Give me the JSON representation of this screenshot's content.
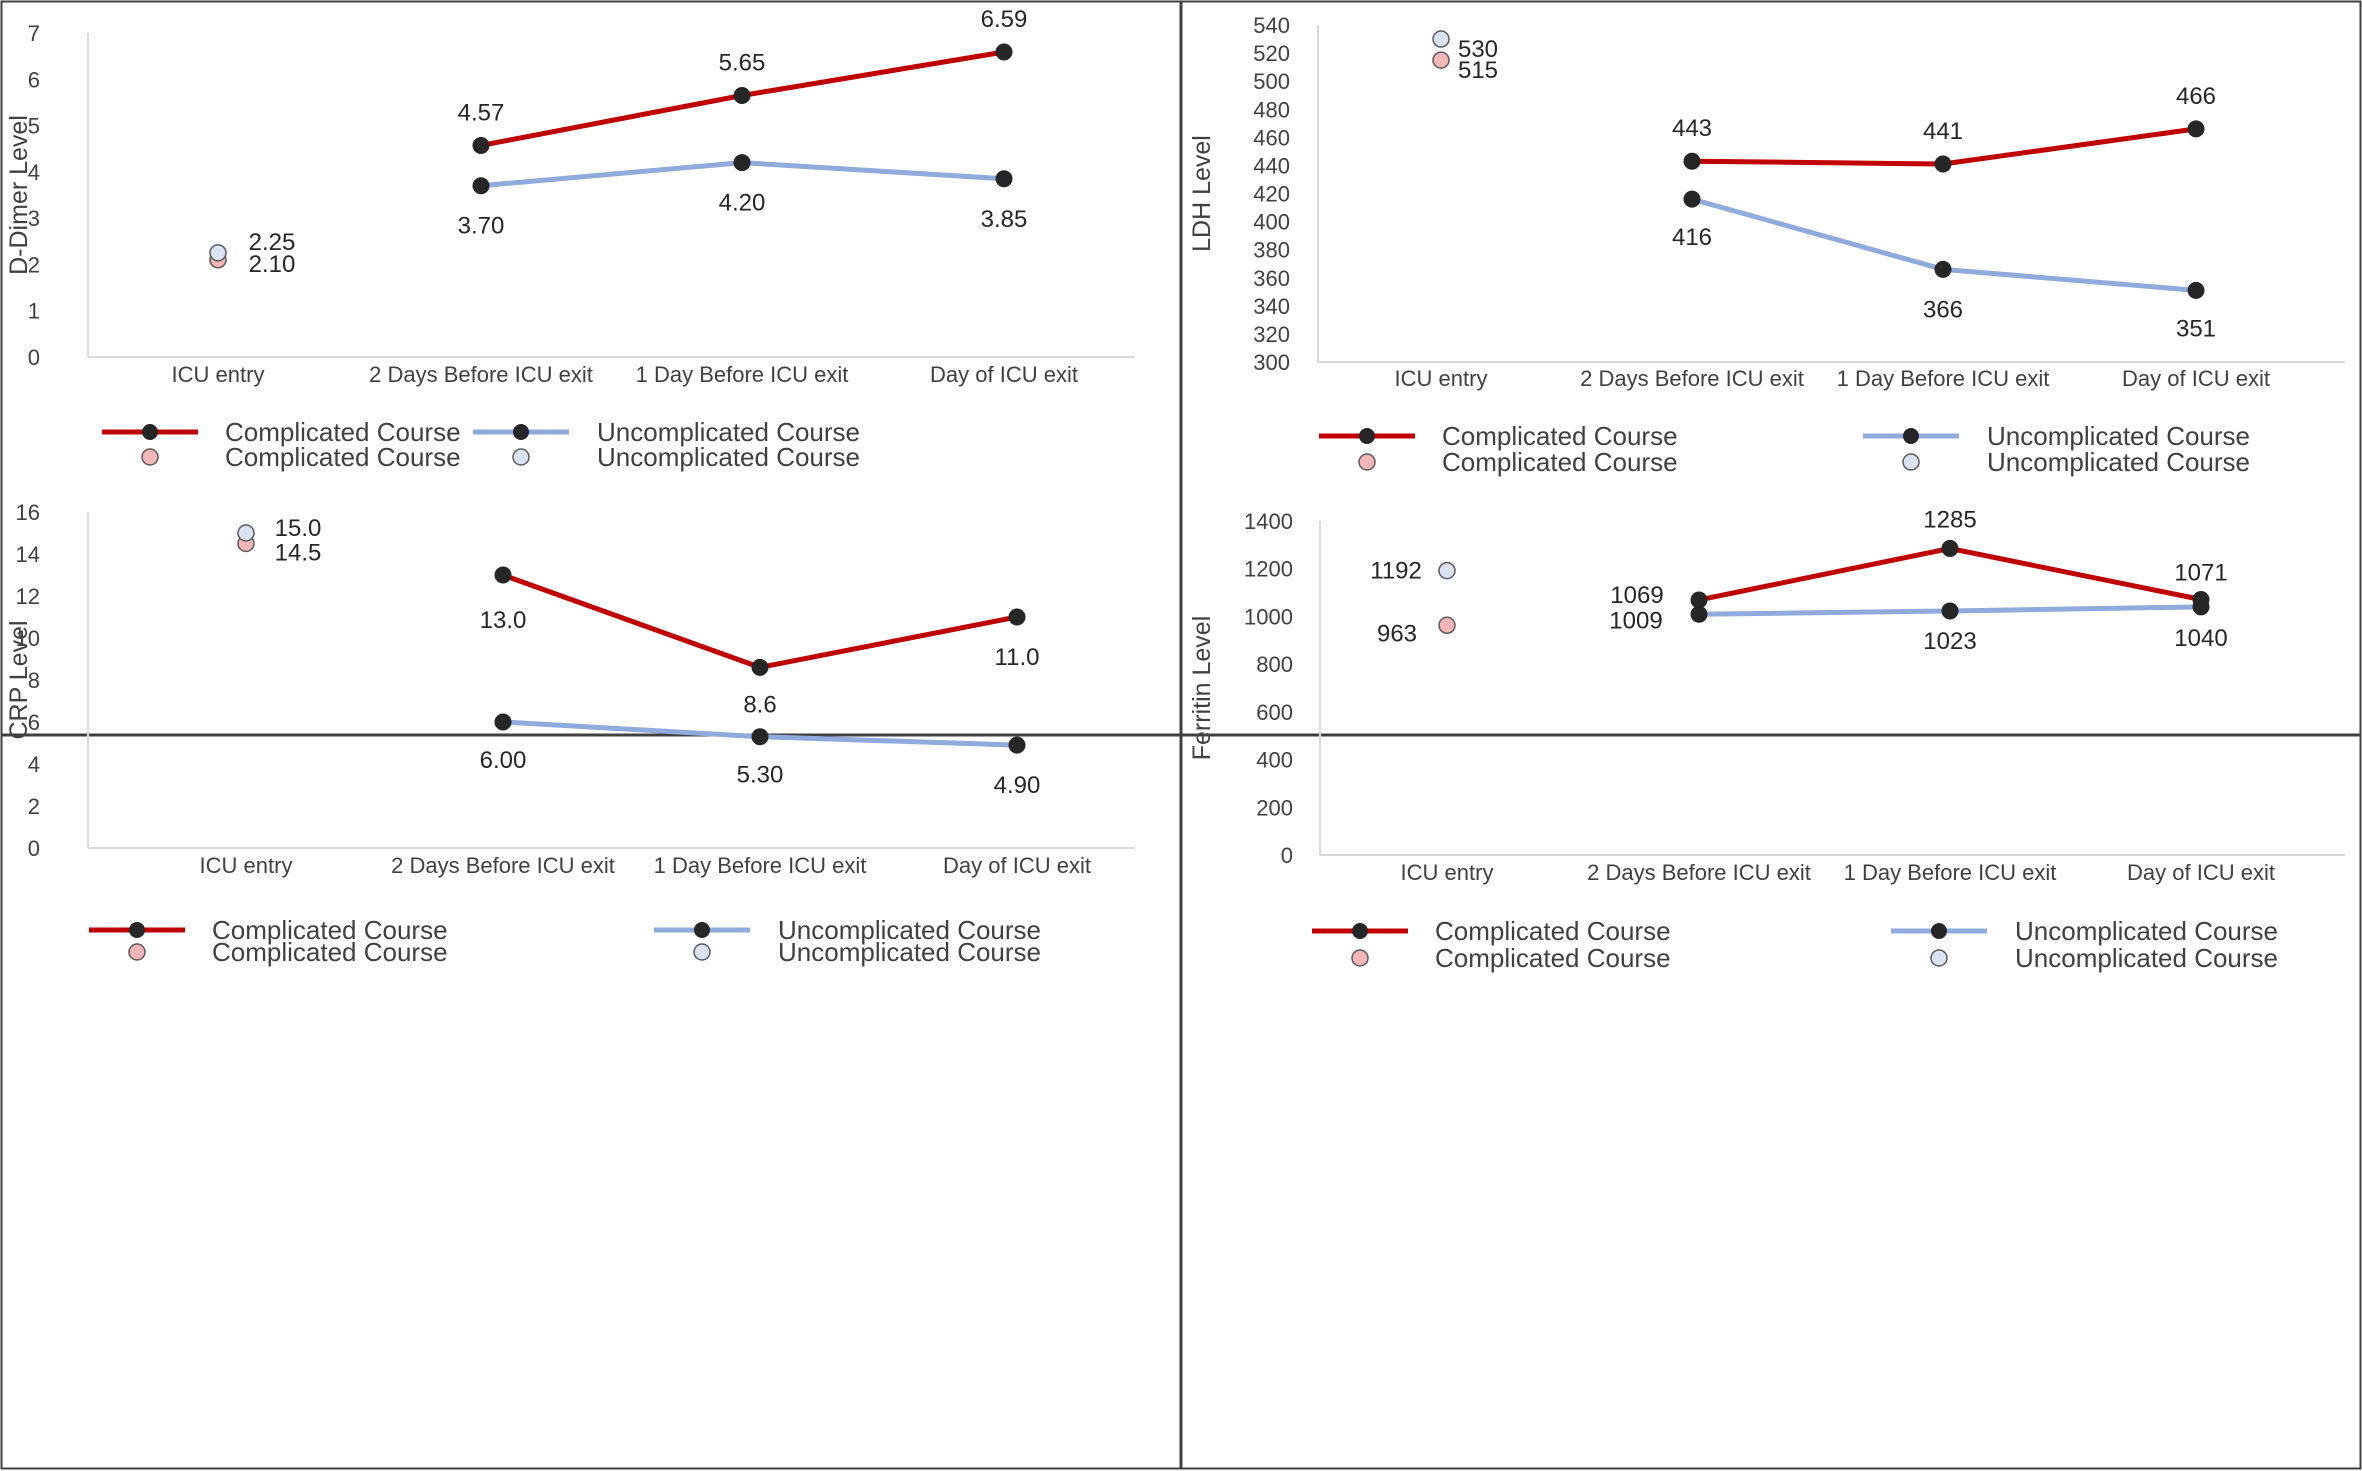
{
  "chart_data": [
    {
      "type": "line",
      "ylabel": "D-Dimer Level",
      "ylim": [
        0,
        7
      ],
      "yticks": [
        0,
        1,
        2,
        3,
        4,
        5,
        6,
        7
      ],
      "categories": [
        "ICU entry",
        "2 Days Before ICU exit",
        "1 Day Before ICU exit",
        "Day of ICU exit"
      ],
      "series": [
        {
          "name": "Complicated Course",
          "style": "line",
          "color": "#c00000",
          "values": [
            null,
            4.57,
            5.65,
            6.59
          ],
          "labels": [
            "",
            "4.57",
            "5.65",
            "6.59"
          ]
        },
        {
          "name": "Uncomplicated Course",
          "style": "line",
          "color": "#8faadc",
          "values": [
            null,
            3.7,
            4.2,
            3.85
          ],
          "labels": [
            "",
            "3.70",
            "4.20",
            "3.85"
          ]
        },
        {
          "name": "Complicated Course",
          "style": "marker",
          "color": "#f4b6b6",
          "values": [
            2.1,
            null,
            null,
            null
          ],
          "labels": [
            "2.10",
            "",
            "",
            ""
          ]
        },
        {
          "name": "Uncomplicated Course",
          "style": "marker",
          "color": "#dae3f3",
          "values": [
            2.25,
            null,
            null,
            null
          ],
          "labels": [
            "2.25",
            "",
            "",
            ""
          ]
        }
      ]
    },
    {
      "type": "line",
      "ylabel": "LDH Level",
      "ylim": [
        300,
        540
      ],
      "yticks": [
        300,
        320,
        340,
        360,
        380,
        400,
        420,
        440,
        460,
        480,
        500,
        520,
        540
      ],
      "categories": [
        "ICU entry",
        "2 Days Before ICU exit",
        "1 Day Before ICU exit",
        "Day of ICU exit"
      ],
      "series": [
        {
          "name": "Complicated Course",
          "style": "line",
          "color": "#c00000",
          "values": [
            null,
            443,
            441,
            466
          ],
          "labels": [
            "",
            "443",
            "441",
            "466"
          ]
        },
        {
          "name": "Uncomplicated Course",
          "style": "line",
          "color": "#8faadc",
          "values": [
            null,
            416,
            366,
            351
          ],
          "labels": [
            "",
            "416",
            "366",
            "351"
          ]
        },
        {
          "name": "Complicated Course",
          "style": "marker",
          "color": "#f4b6b6",
          "values": [
            515,
            null,
            null,
            null
          ],
          "labels": [
            "515",
            "",
            "",
            ""
          ]
        },
        {
          "name": "Uncomplicated Course",
          "style": "marker",
          "color": "#dae3f3",
          "values": [
            530,
            null,
            null,
            null
          ],
          "labels": [
            "530",
            "",
            "",
            ""
          ]
        }
      ]
    },
    {
      "type": "line",
      "ylabel": "CRP Level",
      "ylim": [
        0,
        16
      ],
      "yticks": [
        0,
        2,
        4,
        6,
        8,
        10,
        12,
        14,
        16
      ],
      "categories": [
        "ICU entry",
        "2 Days Before ICU exit",
        "1 Day Before ICU exit",
        "Day of ICU exit"
      ],
      "series": [
        {
          "name": "Complicated Course",
          "style": "line",
          "color": "#c00000",
          "values": [
            null,
            13.0,
            8.6,
            11.0
          ],
          "labels": [
            "",
            "13.0",
            "8.6",
            "11.0"
          ]
        },
        {
          "name": "Uncomplicated Course",
          "style": "line",
          "color": "#8faadc",
          "values": [
            null,
            6.0,
            5.3,
            4.9
          ],
          "labels": [
            "",
            "6.00",
            "5.30",
            "4.90"
          ]
        },
        {
          "name": "Complicated Course",
          "style": "marker",
          "color": "#f4b6b6",
          "values": [
            14.5,
            null,
            null,
            null
          ],
          "labels": [
            "14.5",
            "",
            "",
            ""
          ]
        },
        {
          "name": "Uncomplicated Course",
          "style": "marker",
          "color": "#dae3f3",
          "values": [
            15.0,
            null,
            null,
            null
          ],
          "labels": [
            "15.0",
            "",
            "",
            ""
          ]
        }
      ]
    },
    {
      "type": "line",
      "ylabel": "Ferritin Level",
      "ylim": [
        0,
        1400
      ],
      "yticks": [
        0,
        200,
        400,
        600,
        800,
        1000,
        1200,
        1400
      ],
      "categories": [
        "ICU entry",
        "2 Days Before ICU exit",
        "1 Day Before ICU exit",
        "Day of ICU exit"
      ],
      "series": [
        {
          "name": "Complicated Course",
          "style": "line",
          "color": "#c00000",
          "values": [
            null,
            1069,
            1285,
            1071
          ],
          "labels": [
            "",
            "1069",
            "1285",
            "1071"
          ]
        },
        {
          "name": "Uncomplicated Course",
          "style": "line",
          "color": "#8faadc",
          "values": [
            null,
            1009,
            1023,
            1040
          ],
          "labels": [
            "",
            "1009",
            "1023",
            "1040"
          ]
        },
        {
          "name": "Complicated Course",
          "style": "marker",
          "color": "#f4b6b6",
          "values": [
            963,
            null,
            null,
            null
          ],
          "labels": [
            "963",
            "",
            "",
            ""
          ]
        },
        {
          "name": "Uncomplicated Course",
          "style": "marker",
          "color": "#dae3f3",
          "values": [
            1192,
            null,
            null,
            null
          ],
          "labels": [
            "1192",
            "",
            "",
            ""
          ]
        }
      ]
    }
  ],
  "legend": {
    "complicated_line": "Complicated Course",
    "uncomplicated_line": "Uncomplicated Course",
    "complicated_marker": "Complicated Course",
    "uncomplicated_marker": "Uncomplicated Course"
  }
}
